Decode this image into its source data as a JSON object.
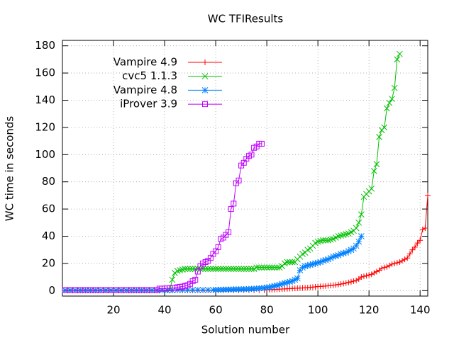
{
  "chart_data": {
    "type": "line",
    "title": "WC TFIResults",
    "x_label": "Solution number",
    "y_label": "WC time in seconds",
    "xlim": [
      0,
      143
    ],
    "ylim": [
      -4,
      184
    ],
    "xticks": [
      20,
      40,
      60,
      80,
      100,
      120,
      140
    ],
    "yticks": [
      0,
      20,
      40,
      60,
      80,
      100,
      120,
      140,
      160,
      180
    ],
    "grid": true,
    "legend": "top-left",
    "series": [
      {
        "name": "Vampire 4.9",
        "color": "#ff0000",
        "marker": "plus",
        "x": [
          1,
          3,
          5,
          7,
          9,
          11,
          13,
          15,
          17,
          19,
          21,
          23,
          25,
          27,
          29,
          31,
          33,
          35,
          37,
          39,
          41,
          43,
          45,
          47,
          49,
          51,
          53,
          55,
          57,
          59,
          61,
          63,
          65,
          67,
          69,
          71,
          73,
          75,
          77,
          79,
          80,
          81,
          82,
          83,
          84,
          85,
          86,
          87,
          88,
          89,
          90,
          91,
          92,
          93,
          94,
          95,
          96,
          97,
          98,
          99,
          100,
          101,
          102,
          103,
          104,
          105,
          106,
          107,
          108,
          109,
          110,
          111,
          112,
          113,
          114,
          115,
          116,
          117,
          118,
          119,
          120,
          121,
          122,
          123,
          124,
          125,
          126,
          127,
          128,
          129,
          130,
          131,
          132,
          133,
          134,
          135,
          136,
          137,
          138,
          139,
          140,
          141,
          142,
          143
        ],
        "values": [
          0.1,
          0.1,
          0.1,
          0.1,
          0.1,
          0.1,
          0.1,
          0.1,
          0.1,
          0.1,
          0.1,
          0.1,
          0.1,
          0.1,
          0.1,
          0.1,
          0.1,
          0.1,
          0.1,
          0.1,
          0.2,
          0.2,
          0.2,
          0.2,
          0.2,
          0.2,
          0.2,
          0.2,
          0.2,
          0.2,
          0.3,
          0.3,
          0.3,
          0.3,
          0.3,
          0.4,
          0.4,
          0.4,
          0.4,
          0.4,
          0.6,
          0.7,
          0.8,
          0.9,
          1,
          1.1,
          1.2,
          1.3,
          1.4,
          1.5,
          1.6,
          1.7,
          1.8,
          1.9,
          2,
          2.1,
          2.2,
          2.4,
          2.6,
          2.8,
          3,
          3.1,
          3.2,
          3.4,
          3.6,
          3.8,
          4,
          4.2,
          4.5,
          4.8,
          5.2,
          5.6,
          6,
          6.5,
          7,
          7.5,
          8.5,
          10,
          10.5,
          11,
          11.5,
          12,
          13,
          14,
          15,
          16.5,
          17,
          17.5,
          18.5,
          19.5,
          20,
          20.5,
          21,
          22,
          23,
          24,
          27,
          30,
          32,
          35,
          37,
          45,
          46,
          70
        ]
      },
      {
        "name": "cvc5 1.1.3",
        "color": "#00c000",
        "marker": "cross",
        "x": [
          1,
          3,
          5,
          7,
          9,
          11,
          13,
          15,
          17,
          19,
          21,
          23,
          25,
          27,
          29,
          31,
          33,
          35,
          37,
          39,
          41,
          42,
          43,
          44,
          45,
          46,
          47,
          48,
          49,
          50,
          51,
          52,
          53,
          54,
          55,
          56,
          57,
          58,
          59,
          60,
          61,
          62,
          63,
          64,
          65,
          66,
          67,
          68,
          69,
          70,
          71,
          72,
          73,
          74,
          75,
          76,
          77,
          78,
          79,
          80,
          81,
          82,
          83,
          84,
          85,
          86,
          87,
          88,
          89,
          90,
          91,
          92,
          93,
          94,
          95,
          96,
          97,
          98,
          99,
          100,
          101,
          102,
          103,
          104,
          105,
          106,
          107,
          108,
          109,
          110,
          111,
          112,
          113,
          114,
          115,
          116,
          117,
          118,
          119,
          120,
          121,
          122,
          123,
          124,
          125,
          126,
          127,
          128,
          129,
          130,
          131,
          132
        ],
        "values": [
          0.3,
          0.3,
          0.3,
          0.3,
          0.3,
          0.3,
          0.3,
          0.3,
          0.3,
          0.3,
          0.3,
          0.3,
          0.3,
          0.3,
          0.3,
          0.3,
          0.3,
          0.3,
          0.3,
          0.3,
          0.3,
          0.5,
          8,
          13,
          14.5,
          15,
          15.5,
          16,
          16,
          16,
          16,
          16,
          16,
          16,
          16,
          16,
          16,
          16,
          16,
          16,
          16,
          16,
          16,
          16,
          16,
          16,
          16,
          16,
          16,
          16,
          16,
          16,
          16,
          16,
          16,
          17,
          17,
          17,
          17,
          17,
          17,
          17,
          17,
          17,
          17,
          18,
          20,
          21,
          21,
          21,
          21,
          23,
          25,
          27,
          28,
          30,
          31,
          33,
          35,
          36,
          36.5,
          37,
          37,
          37,
          37.5,
          38,
          39,
          40,
          40.5,
          41,
          41.5,
          42,
          43,
          44,
          46,
          50,
          56,
          69,
          71,
          73,
          75,
          88,
          93,
          113,
          118,
          120,
          134,
          138,
          141,
          149,
          170,
          174
        ]
      },
      {
        "name": "Vampire 4.8",
        "color": "#0080ff",
        "marker": "star",
        "x": [
          1,
          3,
          5,
          7,
          9,
          11,
          13,
          15,
          17,
          19,
          21,
          23,
          25,
          27,
          29,
          31,
          33,
          35,
          37,
          39,
          41,
          43,
          45,
          47,
          49,
          51,
          53,
          55,
          57,
          59,
          60,
          61,
          62,
          63,
          64,
          65,
          66,
          67,
          68,
          69,
          70,
          71,
          72,
          73,
          74,
          75,
          76,
          77,
          78,
          79,
          80,
          81,
          82,
          83,
          84,
          85,
          86,
          87,
          88,
          89,
          90,
          91,
          92,
          93,
          94,
          95,
          96,
          97,
          98,
          99,
          100,
          101,
          102,
          103,
          104,
          105,
          106,
          107,
          108,
          109,
          110,
          111,
          112,
          113,
          114,
          115,
          116,
          117
        ],
        "values": [
          0.2,
          0.2,
          0.2,
          0.2,
          0.2,
          0.2,
          0.2,
          0.2,
          0.2,
          0.2,
          0.2,
          0.2,
          0.2,
          0.2,
          0.2,
          0.2,
          0.2,
          0.2,
          0.2,
          0.2,
          0.2,
          0.2,
          0.5,
          0.5,
          0.5,
          0.5,
          0.5,
          0.5,
          0.5,
          0.5,
          0.6,
          0.6,
          0.7,
          0.7,
          0.8,
          0.8,
          0.9,
          0.9,
          1,
          1,
          1,
          1.1,
          1.1,
          1.2,
          1.3,
          1.4,
          1.5,
          1.7,
          1.9,
          2,
          2.3,
          2.6,
          3,
          3.4,
          3.8,
          4.3,
          5,
          5.5,
          6,
          6.5,
          7,
          8,
          9,
          15,
          17,
          18,
          18.5,
          19,
          19.5,
          20,
          20.5,
          21,
          22,
          22.5,
          23,
          24,
          25,
          25.5,
          26,
          27,
          27.5,
          28,
          29,
          30,
          31,
          33,
          36,
          40
        ]
      },
      {
        "name": "iProver 3.9",
        "color": "#c000ff",
        "marker": "box",
        "x": [
          1,
          3,
          5,
          7,
          9,
          11,
          13,
          15,
          17,
          19,
          21,
          23,
          25,
          27,
          29,
          31,
          33,
          35,
          37,
          38,
          39,
          40,
          41,
          42,
          43,
          44,
          45,
          46,
          47,
          48,
          49,
          50,
          51,
          52,
          53,
          54,
          55,
          56,
          57,
          58,
          59,
          60,
          61,
          62,
          63,
          64,
          65,
          66,
          67,
          68,
          69,
          70,
          71,
          72,
          73,
          74,
          75,
          76,
          77,
          78
        ],
        "values": [
          0.5,
          0.5,
          0.5,
          0.5,
          0.5,
          0.5,
          0.5,
          0.5,
          0.5,
          0.5,
          0.5,
          0.5,
          0.5,
          0.5,
          0.5,
          0.5,
          0.5,
          0.5,
          0.5,
          1.5,
          1.5,
          1.6,
          1.7,
          1.8,
          1.9,
          2,
          2.5,
          2.8,
          3,
          3.5,
          4,
          5,
          7,
          8,
          14,
          18,
          20,
          21,
          22,
          24,
          27,
          29,
          32,
          38,
          39,
          41,
          43,
          60,
          64,
          79,
          81,
          92,
          94,
          97,
          99,
          100,
          105,
          106,
          108,
          108
        ]
      }
    ]
  }
}
